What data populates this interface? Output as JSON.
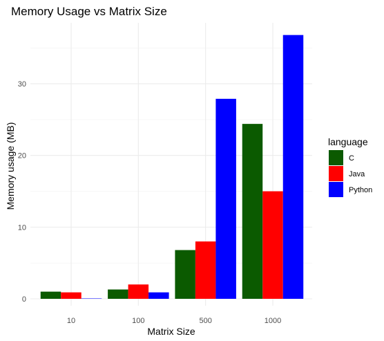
{
  "chart_data": {
    "type": "bar",
    "title": "Memory Usage vs Matrix Size",
    "xlabel": "Matrix Size",
    "ylabel": "Memory usage (MB)",
    "categories": [
      "10",
      "100",
      "500",
      "1000"
    ],
    "ylim": [
      0,
      38.5
    ],
    "yticks": [
      0,
      10,
      20,
      30
    ],
    "grid": true,
    "legend": {
      "title": "language",
      "placement": "right"
    },
    "series": [
      {
        "name": "C",
        "color": "#0b5a00",
        "values": [
          1.0,
          1.3,
          6.8,
          24.4
        ]
      },
      {
        "name": "Java",
        "color": "#ff0000",
        "values": [
          0.9,
          2.0,
          8.0,
          15.0
        ]
      },
      {
        "name": "Python",
        "color": "#0000ff",
        "values": [
          0.05,
          0.9,
          27.9,
          36.8
        ]
      }
    ]
  }
}
